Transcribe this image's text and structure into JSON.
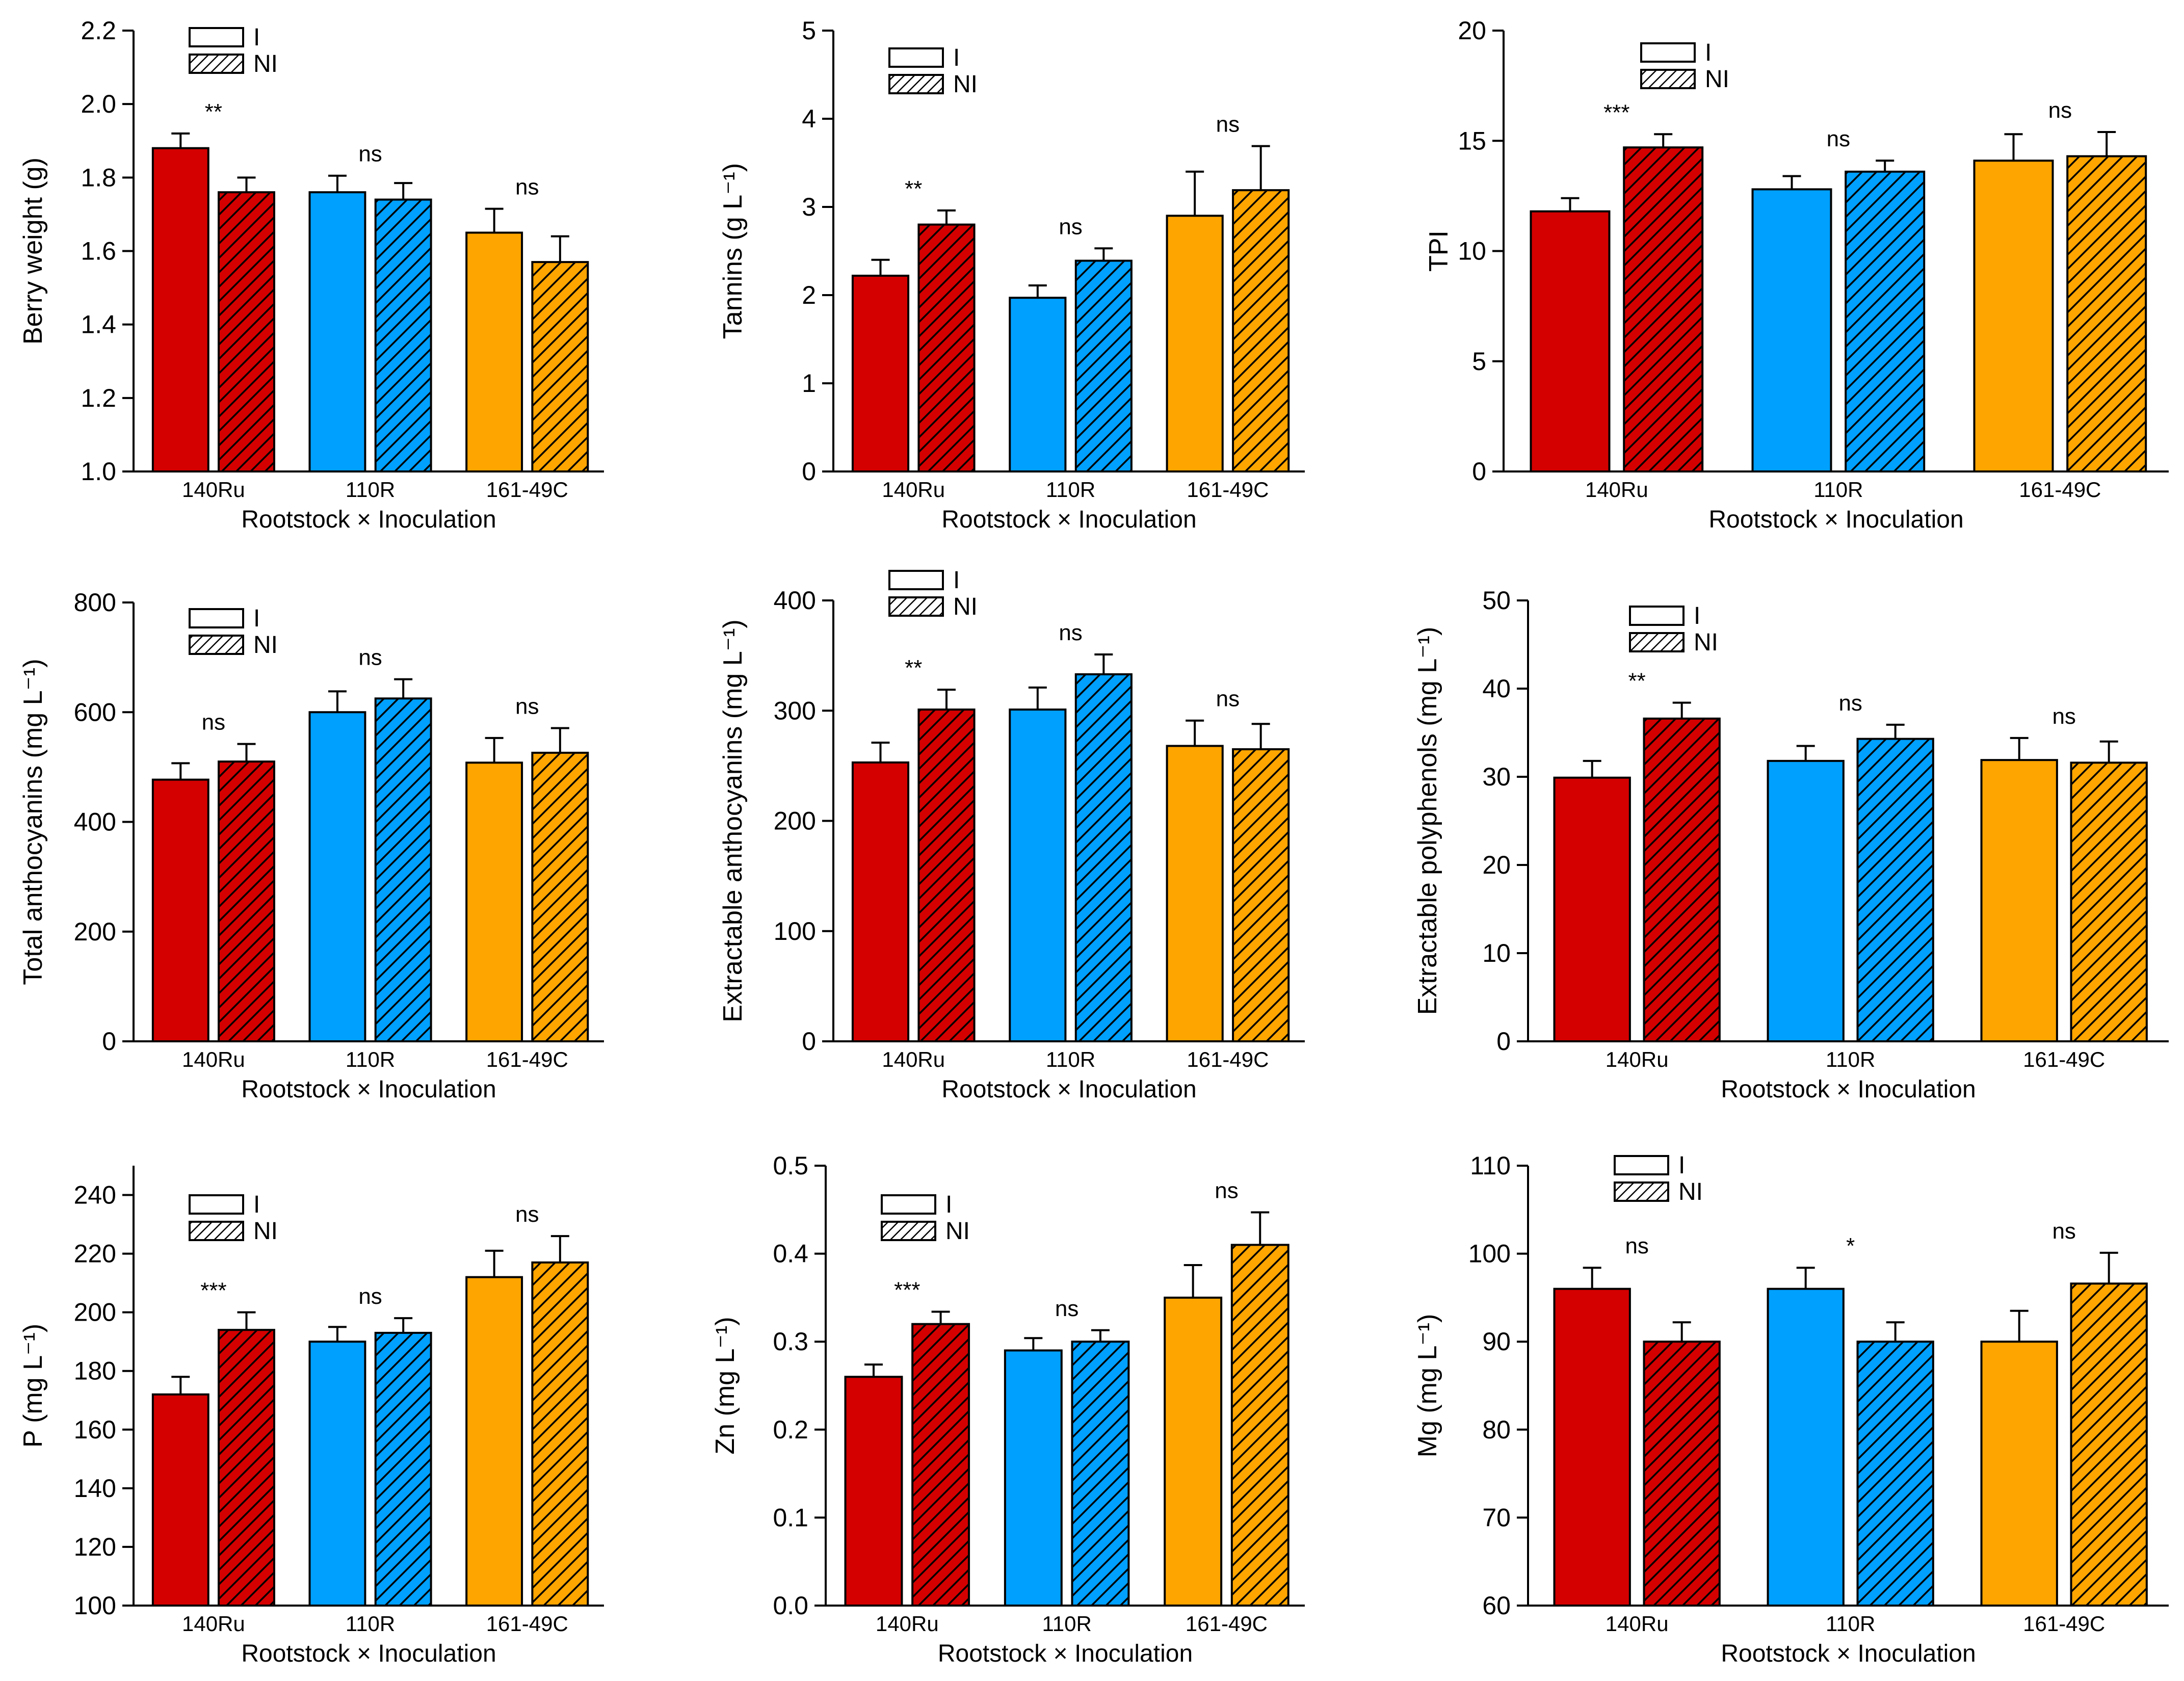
{
  "colors": {
    "140Ru": "#d40000",
    "110R": "#00a0ff",
    "161-49C": "#ffa500"
  },
  "chart_data": [
    {
      "type": "bar",
      "ylabel": "Berry weight (g)",
      "xlabel": "Rootstock × Inoculation",
      "categories": [
        "140Ru",
        "110R",
        "161-49C"
      ],
      "legend": [
        "I",
        "NI"
      ],
      "legend_position": "top-left",
      "ylim": [
        1.0,
        2.2
      ],
      "yticks": [
        1.0,
        1.2,
        1.4,
        1.6,
        1.8,
        2.0,
        2.2
      ],
      "ytick_labels": [
        "1.0",
        "1.2",
        "1.4",
        "1.6",
        "1.8",
        "2.0",
        "2.2"
      ],
      "series": [
        {
          "name": "I",
          "values": [
            1.88,
            1.76,
            1.65
          ],
          "errors": [
            0.04,
            0.045,
            0.065
          ]
        },
        {
          "name": "NI",
          "values": [
            1.76,
            1.74,
            1.57
          ],
          "errors": [
            0.04,
            0.045,
            0.07
          ]
        }
      ],
      "significance": [
        "**",
        "ns",
        "ns"
      ]
    },
    {
      "type": "bar",
      "ylabel": "Tannins (g L⁻¹)",
      "xlabel": "Rootstock × Inoculation",
      "categories": [
        "140Ru",
        "110R",
        "161-49C"
      ],
      "legend": [
        "I",
        "NI"
      ],
      "legend_position": "top-left",
      "ylim": [
        0,
        5
      ],
      "yticks": [
        0,
        1,
        2,
        3,
        4,
        5
      ],
      "ytick_labels": [
        "0",
        "1",
        "2",
        "3",
        "4",
        "5"
      ],
      "series": [
        {
          "name": "I",
          "values": [
            2.22,
            1.97,
            2.9
          ],
          "errors": [
            0.18,
            0.14,
            0.5
          ]
        },
        {
          "name": "NI",
          "values": [
            2.8,
            2.39,
            3.19
          ],
          "errors": [
            0.16,
            0.14,
            0.5
          ]
        }
      ],
      "significance": [
        "**",
        "ns",
        "ns"
      ]
    },
    {
      "type": "bar",
      "ylabel": "TPI",
      "xlabel": "Rootstock × Inoculation",
      "categories": [
        "140Ru",
        "110R",
        "161-49C"
      ],
      "legend": [
        "I",
        "NI"
      ],
      "legend_position": "top-left",
      "ylim": [
        0,
        20
      ],
      "yticks": [
        0,
        5,
        10,
        15,
        20
      ],
      "ytick_labels": [
        "0",
        "5",
        "10",
        "15",
        "20"
      ],
      "series": [
        {
          "name": "I",
          "values": [
            11.8,
            12.8,
            14.1
          ],
          "errors": [
            0.6,
            0.6,
            1.2
          ]
        },
        {
          "name": "NI",
          "values": [
            14.7,
            13.6,
            14.3
          ],
          "errors": [
            0.6,
            0.5,
            1.1
          ]
        }
      ],
      "significance": [
        "***",
        "ns",
        "ns"
      ]
    },
    {
      "type": "bar",
      "ylabel": "Total anthocyanins (mg L⁻¹)",
      "xlabel": "Rootstock × Inoculation",
      "categories": [
        "140Ru",
        "110R",
        "161-49C"
      ],
      "legend": [
        "I",
        "NI"
      ],
      "legend_position": "top-left",
      "ylim": [
        0,
        800
      ],
      "yticks": [
        0,
        200,
        400,
        600,
        800
      ],
      "ytick_labels": [
        "0",
        "200",
        "400",
        "600",
        "800"
      ],
      "series": [
        {
          "name": "I",
          "values": [
            477,
            600,
            508
          ],
          "errors": [
            30,
            38,
            45
          ]
        },
        {
          "name": "NI",
          "values": [
            510,
            625,
            526
          ],
          "errors": [
            32,
            35,
            45
          ]
        }
      ],
      "significance": [
        "ns",
        "ns",
        "ns"
      ]
    },
    {
      "type": "bar",
      "ylabel": "Extractable anthocyanins (mg L⁻¹)",
      "xlabel": "Rootstock × Inoculation",
      "categories": [
        "140Ru",
        "110R",
        "161-49C"
      ],
      "legend": [
        "I",
        "NI"
      ],
      "legend_position": "top-left",
      "ylim": [
        0,
        400
      ],
      "yticks": [
        0,
        100,
        200,
        300,
        400
      ],
      "ytick_labels": [
        "0",
        "100",
        "200",
        "300",
        "400"
      ],
      "series": [
        {
          "name": "I",
          "values": [
            253,
            301,
            268
          ],
          "errors": [
            18,
            20,
            23
          ]
        },
        {
          "name": "NI",
          "values": [
            301,
            333,
            265
          ],
          "errors": [
            18,
            18,
            23
          ]
        }
      ],
      "significance": [
        "**",
        "ns",
        "ns"
      ]
    },
    {
      "type": "bar",
      "ylabel": "Extractable polyphenols (mg L⁻¹)",
      "xlabel": "Rootstock × Inoculation",
      "categories": [
        "140Ru",
        "110R",
        "161-49C"
      ],
      "legend": [
        "I",
        "NI"
      ],
      "legend_position": "top-left",
      "ylim": [
        0,
        50
      ],
      "yticks": [
        0,
        10,
        20,
        30,
        40,
        50
      ],
      "ytick_labels": [
        "0",
        "10",
        "20",
        "30",
        "40",
        "50"
      ],
      "series": [
        {
          "name": "I",
          "values": [
            29.9,
            31.8,
            31.9
          ],
          "errors": [
            1.9,
            1.7,
            2.5
          ]
        },
        {
          "name": "NI",
          "values": [
            36.6,
            34.3,
            31.6
          ],
          "errors": [
            1.8,
            1.6,
            2.4
          ]
        }
      ],
      "significance": [
        "**",
        "ns",
        "ns"
      ]
    },
    {
      "type": "bar",
      "ylabel": "P (mg L⁻¹)",
      "xlabel": "Rootstock × Inoculation",
      "categories": [
        "140Ru",
        "110R",
        "161-49C"
      ],
      "legend": [
        "I",
        "NI"
      ],
      "legend_position": "top-left",
      "ylim": [
        100,
        250
      ],
      "yticks": [
        100,
        120,
        140,
        160,
        180,
        200,
        220,
        240
      ],
      "ytick_labels": [
        "100",
        "120",
        "140",
        "160",
        "180",
        "200",
        "220",
        "240"
      ],
      "series": [
        {
          "name": "I",
          "values": [
            172,
            190,
            212
          ],
          "errors": [
            6,
            5,
            9
          ]
        },
        {
          "name": "NI",
          "values": [
            194,
            193,
            217
          ],
          "errors": [
            6,
            5,
            9
          ]
        }
      ],
      "significance": [
        "***",
        "ns",
        "ns"
      ]
    },
    {
      "type": "bar",
      "ylabel": "Zn (mg L⁻¹)",
      "xlabel": "Rootstock × Inoculation",
      "categories": [
        "140Ru",
        "110R",
        "161-49C"
      ],
      "legend": [
        "I",
        "NI"
      ],
      "legend_position": "top-left",
      "ylim": [
        0,
        0.5
      ],
      "yticks": [
        0,
        0.1,
        0.2,
        0.3,
        0.4,
        0.5
      ],
      "ytick_labels": [
        "0.0",
        "0.1",
        "0.2",
        "0.3",
        "0.4",
        "0.5"
      ],
      "series": [
        {
          "name": "I",
          "values": [
            0.26,
            0.29,
            0.35
          ],
          "errors": [
            0.014,
            0.014,
            0.037
          ]
        },
        {
          "name": "NI",
          "values": [
            0.32,
            0.3,
            0.41
          ],
          "errors": [
            0.014,
            0.013,
            0.037
          ]
        }
      ],
      "significance": [
        "***",
        "ns",
        "ns"
      ]
    },
    {
      "type": "bar",
      "ylabel": "Mg (mg L⁻¹)",
      "xlabel": "Rootstock × Inoculation",
      "categories": [
        "140Ru",
        "110R",
        "161-49C"
      ],
      "legend": [
        "I",
        "NI"
      ],
      "legend_position": "top-left",
      "ylim": [
        60,
        110
      ],
      "yticks": [
        60,
        70,
        80,
        90,
        100,
        110
      ],
      "ytick_labels": [
        "60",
        "70",
        "80",
        "90",
        "100",
        "110"
      ],
      "series": [
        {
          "name": "I",
          "values": [
            96,
            96,
            90
          ],
          "errors": [
            2.4,
            2.4,
            3.5
          ]
        },
        {
          "name": "NI",
          "values": [
            90,
            90,
            96.6
          ],
          "errors": [
            2.2,
            2.2,
            3.5
          ]
        }
      ],
      "significance": [
        "ns",
        "*",
        "ns"
      ]
    }
  ]
}
